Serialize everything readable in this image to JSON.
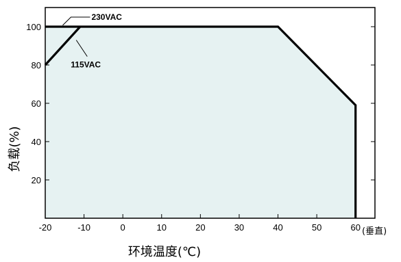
{
  "chart_data": {
    "type": "line",
    "xlabel": "环境温度(℃)",
    "ylabel": "负载(%)",
    "xlim": [
      -20,
      65
    ],
    "ylim": [
      0,
      110
    ],
    "x_ticks": [
      -20,
      -10,
      0,
      10,
      20,
      30,
      40,
      50,
      60
    ],
    "y_ticks": [
      20,
      40,
      60,
      80,
      100
    ],
    "x_unit_note": "(垂直)",
    "fill_color": "#e6f2f2",
    "line_color": "#000000",
    "series": [
      {
        "name": "230VAC",
        "x": [
          -20,
          40,
          60,
          60
        ],
        "y": [
          100,
          100,
          59,
          0
        ]
      },
      {
        "name": "115VAC",
        "x": [
          -20,
          -11
        ],
        "y": [
          80,
          100
        ]
      }
    ],
    "annotations": [
      {
        "text": "230VAC",
        "target_x": -15.5,
        "target_y": 100
      },
      {
        "text": "115VAC",
        "target_x": -12,
        "target_y": 93
      }
    ]
  }
}
